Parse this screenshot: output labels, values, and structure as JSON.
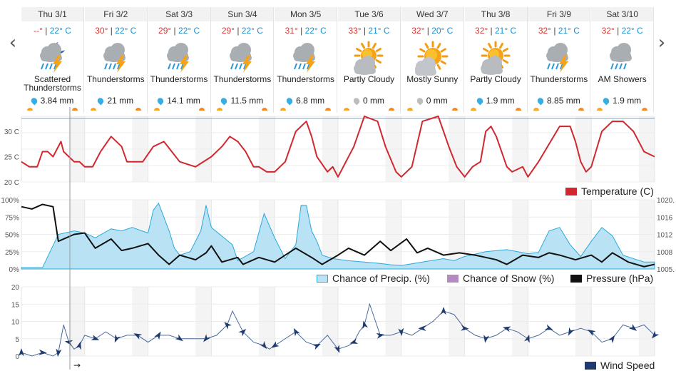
{
  "nav": {
    "prev": "‹",
    "next": "›"
  },
  "days": [
    {
      "label": "Thu 3/1",
      "hi": "--°",
      "lo": "22° C",
      "icon": "thunderstorm-night-icon",
      "kind": "storm-night",
      "cond": "Scattered Thunderstorms",
      "precip": "3.84 mm",
      "drop": "blue"
    },
    {
      "label": "Fri 3/2",
      "hi": "30°",
      "lo": "22° C",
      "icon": "thunderstorm-icon",
      "kind": "storm",
      "cond": "Thunderstorms",
      "precip": "21 mm",
      "drop": "blue"
    },
    {
      "label": "Sat 3/3",
      "hi": "29°",
      "lo": "22° C",
      "icon": "thunderstorm-icon",
      "kind": "storm",
      "cond": "Thunderstorms",
      "precip": "14.1 mm",
      "drop": "blue"
    },
    {
      "label": "Sun 3/4",
      "hi": "29°",
      "lo": "22° C",
      "icon": "thunderstorm-icon",
      "kind": "storm",
      "cond": "Thunderstorms",
      "precip": "11.5 mm",
      "drop": "blue"
    },
    {
      "label": "Mon 3/5",
      "hi": "31°",
      "lo": "22° C",
      "icon": "thunderstorm-icon",
      "kind": "storm",
      "cond": "Thunderstorms",
      "precip": "6.8 mm",
      "drop": "blue"
    },
    {
      "label": "Tue 3/6",
      "hi": "33°",
      "lo": "21° C",
      "icon": "partly-cloudy-icon",
      "kind": "partly",
      "cond": "Partly Cloudy",
      "precip": "0 mm",
      "drop": "gray"
    },
    {
      "label": "Wed 3/7",
      "hi": "32°",
      "lo": "20° C",
      "icon": "mostly-sunny-icon",
      "kind": "sunny",
      "cond": "Mostly Sunny",
      "precip": "0 mm",
      "drop": "gray"
    },
    {
      "label": "Thu 3/8",
      "hi": "32°",
      "lo": "21° C",
      "icon": "partly-cloudy-icon",
      "kind": "partly",
      "cond": "Partly Cloudy",
      "precip": "1.9 mm",
      "drop": "blue"
    },
    {
      "label": "Fri 3/9",
      "hi": "32°",
      "lo": "21° C",
      "icon": "thunderstorm-icon",
      "kind": "storm",
      "cond": "Thunderstorms",
      "precip": "8.85 mm",
      "drop": "blue"
    },
    {
      "label": "Sat 3/10",
      "hi": "32°",
      "lo": "22° C",
      "icon": "showers-icon",
      "kind": "showers",
      "cond": "AM Showers",
      "precip": "1.9 mm",
      "drop": "blue"
    }
  ],
  "colors": {
    "temp": "#d0282e",
    "precip_fill": "#b9e3f5",
    "precip_line": "#29a9d9",
    "snow": "#b48ac0",
    "pressure": "#111111",
    "wind": "#1f3a6e",
    "grid_band": "#f4f4f4",
    "now_line": "#999999",
    "hi": "#dd3333",
    "lo": "#1a8fd1"
  },
  "chart_data": [
    {
      "type": "line",
      "x_unit": "hours from start (10 days)",
      "x_hours": [
        0,
        3,
        6,
        8,
        10,
        12,
        14,
        15,
        16,
        18,
        20,
        21,
        22,
        24,
        27,
        30,
        34,
        38,
        40,
        42,
        46,
        50,
        54,
        57,
        60,
        66,
        72,
        76,
        79,
        82,
        85,
        88,
        90,
        93,
        96,
        100,
        104,
        108,
        110,
        112,
        116,
        118,
        120,
        123,
        126,
        130,
        135,
        138,
        142,
        144,
        148,
        152,
        158,
        162,
        165,
        168,
        171,
        174,
        176,
        178,
        180,
        184,
        186,
        190,
        192,
        196,
        204,
        208,
        210,
        212,
        214,
        216,
        220,
        224,
        228,
        232,
        236,
        240
      ],
      "series": [
        {
          "name": "Temperature (C)",
          "values": [
            24,
            23,
            23,
            26,
            26,
            25,
            27,
            28,
            26,
            25,
            24,
            24,
            24,
            23,
            23,
            26,
            29,
            27,
            24,
            24,
            24,
            27,
            28,
            26,
            24,
            23,
            25,
            27,
            29,
            28,
            26,
            23,
            23,
            22,
            22,
            24,
            30,
            32,
            29,
            25,
            22,
            23,
            21,
            24,
            27,
            33,
            32,
            27,
            22,
            21,
            23,
            32,
            33,
            27,
            23,
            21,
            23,
            24,
            30,
            31,
            29,
            23,
            22,
            23,
            21,
            24,
            31,
            31,
            28,
            24,
            22,
            23,
            30,
            32,
            32,
            30,
            26,
            25
          ]
        }
      ],
      "yticks": [
        "20 C",
        "25 C",
        "30 C"
      ],
      "ylim": [
        20,
        33
      ],
      "legend": "Temperature (C)"
    },
    {
      "type": "area+line",
      "x_unit": "hours from start (10 days)",
      "precip_x": [
        0,
        4,
        8,
        14,
        20,
        24,
        28,
        34,
        38,
        42,
        48,
        50,
        52,
        56,
        58,
        60,
        64,
        68,
        70,
        72,
        80,
        82,
        88,
        92,
        96,
        100,
        104,
        106,
        108,
        110,
        112,
        114,
        118,
        124,
        130,
        136,
        140,
        144,
        152,
        160,
        164,
        168,
        176,
        184,
        188,
        192,
        196,
        200,
        204,
        208,
        212,
        216,
        220,
        224,
        228,
        232,
        236,
        240
      ],
      "precip": [
        2,
        2,
        2,
        50,
        55,
        52,
        45,
        58,
        55,
        60,
        52,
        85,
        95,
        55,
        30,
        20,
        25,
        55,
        92,
        60,
        35,
        12,
        25,
        80,
        45,
        15,
        35,
        92,
        92,
        55,
        40,
        20,
        15,
        12,
        10,
        8,
        6,
        5,
        10,
        15,
        12,
        18,
        25,
        28,
        25,
        22,
        24,
        55,
        60,
        35,
        18,
        40,
        60,
        48,
        20,
        15,
        10,
        10
      ],
      "pressure_x": [
        0,
        4,
        8,
        12,
        14,
        20,
        24,
        28,
        34,
        38,
        42,
        48,
        52,
        56,
        60,
        66,
        70,
        72,
        76,
        82,
        84,
        90,
        96,
        100,
        104,
        110,
        114,
        120,
        124,
        130,
        136,
        140,
        146,
        150,
        154,
        160,
        166,
        172,
        176,
        180,
        184,
        190,
        196,
        200,
        204,
        210,
        216,
        220,
        224,
        230,
        236,
        240
      ],
      "pressure": [
        1018.5,
        1018.0,
        1019.0,
        1018.5,
        1011.0,
        1012.5,
        1012.8,
        1009.5,
        1011.5,
        1009.0,
        1009.5,
        1010.5,
        1008.0,
        1006.0,
        1008.0,
        1007.0,
        1008.5,
        1010.0,
        1006.5,
        1007.5,
        1006.0,
        1007.5,
        1006.5,
        1008.0,
        1009.5,
        1007.5,
        1006.0,
        1008.0,
        1009.5,
        1008.0,
        1011.0,
        1009.0,
        1011.5,
        1008.5,
        1009.5,
        1008.0,
        1008.5,
        1008.0,
        1007.5,
        1007.0,
        1006.0,
        1008.0,
        1007.5,
        1008.5,
        1008.0,
        1007.0,
        1008.0,
        1006.5,
        1008.5,
        1006.5,
        1005.5,
        1006.0
      ],
      "y_left_ticks": [
        "0%",
        "25%",
        "50%",
        "75%",
        "100%"
      ],
      "y_right_ticks": [
        "1005.",
        "1008",
        "1012",
        "1016",
        "1020."
      ],
      "ylim_left": [
        0,
        100
      ],
      "ylim_right": [
        1005,
        1020
      ],
      "legend": [
        "Chance of Precip. (%)",
        "Chance of Snow (%)",
        "Pressure (hPa)"
      ]
    },
    {
      "type": "line",
      "x_unit": "hours from start (10 days)",
      "x_hours": [
        0,
        4,
        8,
        12,
        14,
        16,
        18,
        20,
        22,
        24,
        28,
        32,
        36,
        40,
        44,
        48,
        52,
        56,
        60,
        66,
        70,
        74,
        78,
        80,
        84,
        88,
        92,
        94,
        96,
        100,
        104,
        108,
        112,
        116,
        120,
        124,
        126,
        128,
        130,
        132,
        136,
        140,
        144,
        148,
        152,
        156,
        160,
        164,
        168,
        172,
        176,
        180,
        184,
        188,
        192,
        196,
        200,
        204,
        208,
        212,
        216,
        220,
        224,
        228,
        232,
        236,
        240
      ],
      "series": [
        {
          "name": "Wind Speed",
          "values": [
            1,
            0,
            1,
            0,
            1,
            9,
            4,
            2,
            3,
            6,
            5,
            7,
            5,
            6,
            6,
            4,
            6,
            6,
            5,
            5,
            5,
            6,
            9,
            13,
            7,
            4,
            3,
            2,
            3,
            5,
            7,
            4,
            3,
            6,
            2,
            3,
            4,
            7,
            9,
            15,
            6,
            6,
            7,
            6,
            8,
            10,
            13,
            12,
            8,
            6,
            5,
            6,
            8,
            7,
            5,
            6,
            8,
            6,
            7,
            8,
            7,
            4,
            5,
            9,
            8,
            9,
            6
          ]
        }
      ],
      "yticks": [
        "0",
        "5",
        "10",
        "15",
        "20"
      ],
      "ylim": [
        0,
        20
      ],
      "legend": "Wind Speed"
    }
  ],
  "now_marker": "→"
}
